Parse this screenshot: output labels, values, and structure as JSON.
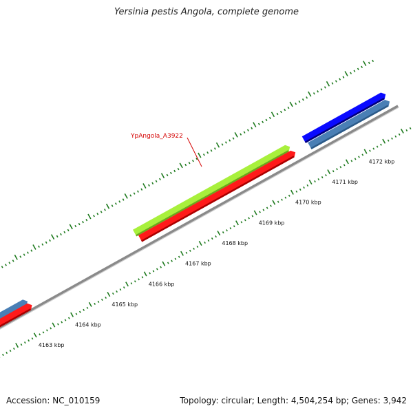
{
  "title": "Yersinia pestis Angola, complete genome",
  "footer": {
    "accession": "Accession: NC_010159",
    "stats": "Topology: circular; Length: 4,504,254 bp; Genes: 3,942"
  },
  "colors": {
    "backbone": "#8a8a8a",
    "ticks": "#1e7a1e",
    "feature_red": "#ff1a1a",
    "feature_green": "#a8f03c",
    "feature_blue": "#0a0aff",
    "feature_steelblue": "#4a7fb5",
    "label": "#d40000"
  },
  "ruler": {
    "unit": "kbp",
    "labels": [
      {
        "value": 4163,
        "text": "4163 kbp"
      },
      {
        "value": 4164,
        "text": "4164 kbp"
      },
      {
        "value": 4165,
        "text": "4165 kbp"
      },
      {
        "value": 4166,
        "text": "4166 kbp"
      },
      {
        "value": 4167,
        "text": "4167 kbp"
      },
      {
        "value": 4168,
        "text": "4168 kbp"
      },
      {
        "value": 4169,
        "text": "4169 kbp"
      },
      {
        "value": 4170,
        "text": "4170 kbp"
      },
      {
        "value": 4171,
        "text": "4171 kbp"
      },
      {
        "value": 4172,
        "text": "4172 kbp"
      }
    ]
  },
  "features": [
    {
      "id": "f-steel-left",
      "color": "steelblue",
      "start": 4162.0,
      "end": 4163.15
    },
    {
      "id": "f-red-left",
      "color": "red",
      "start": 4162.0,
      "end": 4163.2
    },
    {
      "id": "f-green",
      "color": "green",
      "start": 4166.25,
      "end": 4170.4,
      "label": "YpAngola_A3922"
    },
    {
      "id": "f-red-main",
      "color": "red",
      "start": 4166.3,
      "end": 4170.45
    },
    {
      "id": "f-blue",
      "color": "blue",
      "start": 4170.85,
      "end": 4173.0
    },
    {
      "id": "f-steel-right",
      "color": "steelblue",
      "start": 4170.9,
      "end": 4173.0
    }
  ]
}
